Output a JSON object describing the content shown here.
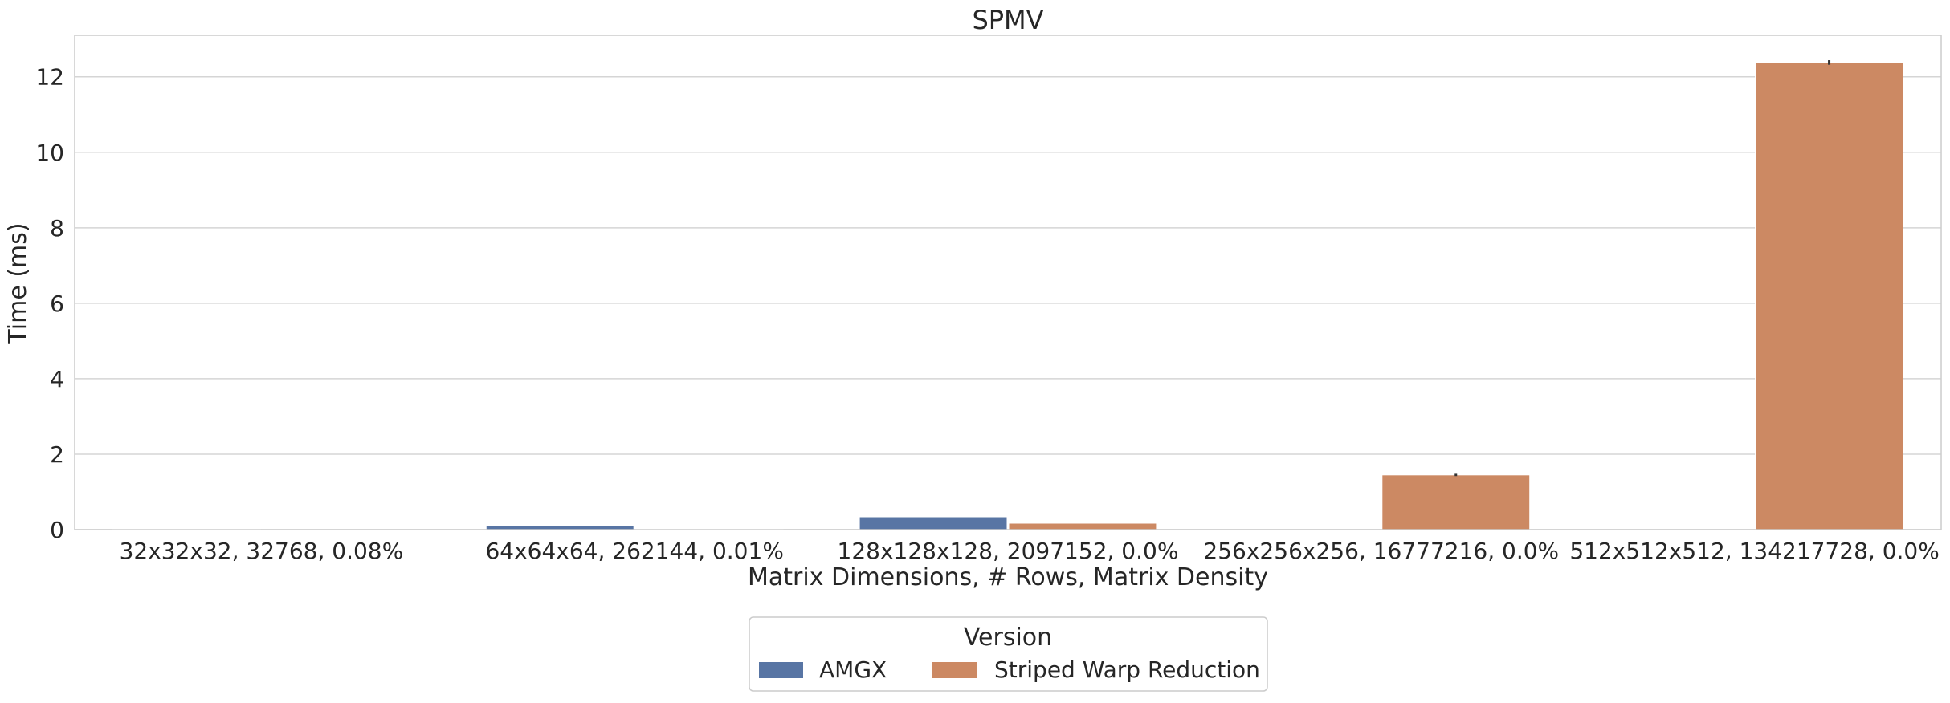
{
  "chart_data": {
    "type": "bar",
    "title": "SPMV",
    "xlabel": "Matrix Dimensions, # Rows, Matrix Density",
    "ylabel": "Time (ms)",
    "ylim": [
      0,
      13.1
    ],
    "yticks": [
      0,
      2,
      4,
      6,
      8,
      10,
      12
    ],
    "grid": true,
    "categories": [
      "32x32x32, 32768, 0.08%",
      "64x64x64, 262144, 0.01%",
      "128x128x128, 2097152, 0.0%",
      "256x256x256, 16777216, 0.0%",
      "512x512x512, 134217728, 0.0%"
    ],
    "series": [
      {
        "name": "AMGX",
        "color": "#5875a4",
        "values": [
          0.02,
          0.11,
          0.34,
          null,
          null
        ],
        "errors": [
          0,
          0,
          0,
          0,
          0
        ]
      },
      {
        "name": "Striped Warp Reduction",
        "color": "#cc8963",
        "values": [
          0.003,
          0.01,
          0.17,
          1.45,
          12.38
        ],
        "errors": [
          0,
          0,
          0,
          0.03,
          0.06
        ]
      }
    ],
    "legend": {
      "title": "Version",
      "placement": "bottom-center"
    }
  }
}
